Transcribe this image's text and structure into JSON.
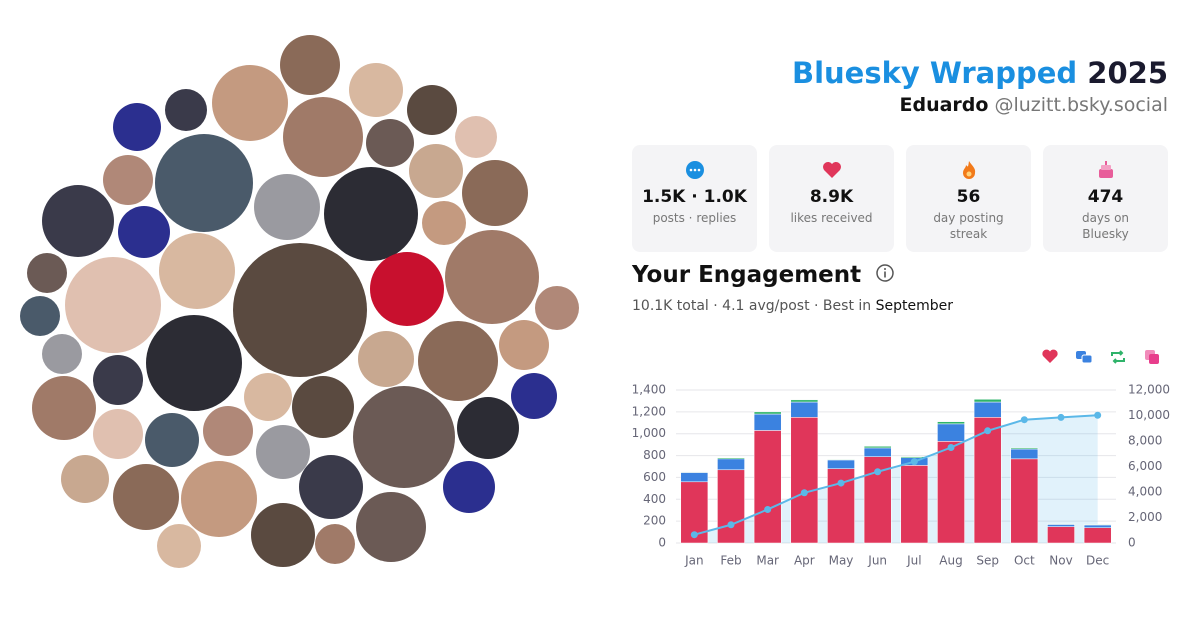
{
  "header": {
    "title": "Bluesky Wrapped",
    "year": "2025",
    "name": "Eduardo",
    "handle": "@luzitt.bsky.social"
  },
  "stats": [
    {
      "value": "1.5K · 1.0K",
      "label": "posts · replies"
    },
    {
      "value": "8.9K",
      "label": "likes received"
    },
    {
      "value": "56",
      "label": "day posting streak"
    },
    {
      "value": "474",
      "label": "days on Bluesky"
    }
  ],
  "engagement": {
    "title": "Your Engagement",
    "summary": "10.1K total · 4.1 avg/post · Best in",
    "best_month": "September"
  },
  "chart_data": {
    "type": "bar",
    "stacked": true,
    "grid": true,
    "categories": [
      "Jan",
      "Feb",
      "Mar",
      "Apr",
      "May",
      "Jun",
      "Jul",
      "Aug",
      "Sep",
      "Oct",
      "Nov",
      "Dec"
    ],
    "series": [
      {
        "color": "#e0365a",
        "values": [
          560,
          670,
          1030,
          1150,
          680,
          790,
          710,
          930,
          1150,
          770,
          150,
          140
        ]
      },
      {
        "color": "#3b82e0",
        "values": [
          85,
          100,
          150,
          140,
          80,
          80,
          70,
          160,
          140,
          90,
          20,
          25
        ]
      },
      {
        "color": "#2fb36a",
        "values": [
          5,
          10,
          20,
          20,
          5,
          15,
          10,
          20,
          25,
          10,
          5,
          5
        ]
      },
      {
        "type": "line",
        "axis": "y2",
        "color": "#5bb8e8",
        "values": [
          650,
          1430,
          2630,
          3940,
          4700,
          5590,
          6380,
          7490,
          8800,
          9670,
          9850,
          10020
        ]
      }
    ],
    "legend_colors": [
      "#e0365a",
      "#3b82e0",
      "#2fb36a",
      "#e83e8c"
    ],
    "ylim": [
      0,
      1400
    ],
    "yticks": [
      0,
      200,
      400,
      600,
      800,
      {
        "value": 1000,
        "label": "1,000"
      },
      {
        "value": 1200,
        "label": "1,200"
      },
      {
        "value": 1400,
        "label": "1,400"
      }
    ],
    "y2lim": [
      0,
      12000
    ],
    "y2ticks": [
      0,
      {
        "value": 2000,
        "label": "2,000"
      },
      {
        "value": 4000,
        "label": "4,000"
      },
      {
        "value": 6000,
        "label": "6,000"
      },
      {
        "value": 8000,
        "label": "8,000"
      },
      {
        "value": 10000,
        "label": "10,000"
      },
      {
        "value": 12000,
        "label": "12,000"
      }
    ]
  }
}
